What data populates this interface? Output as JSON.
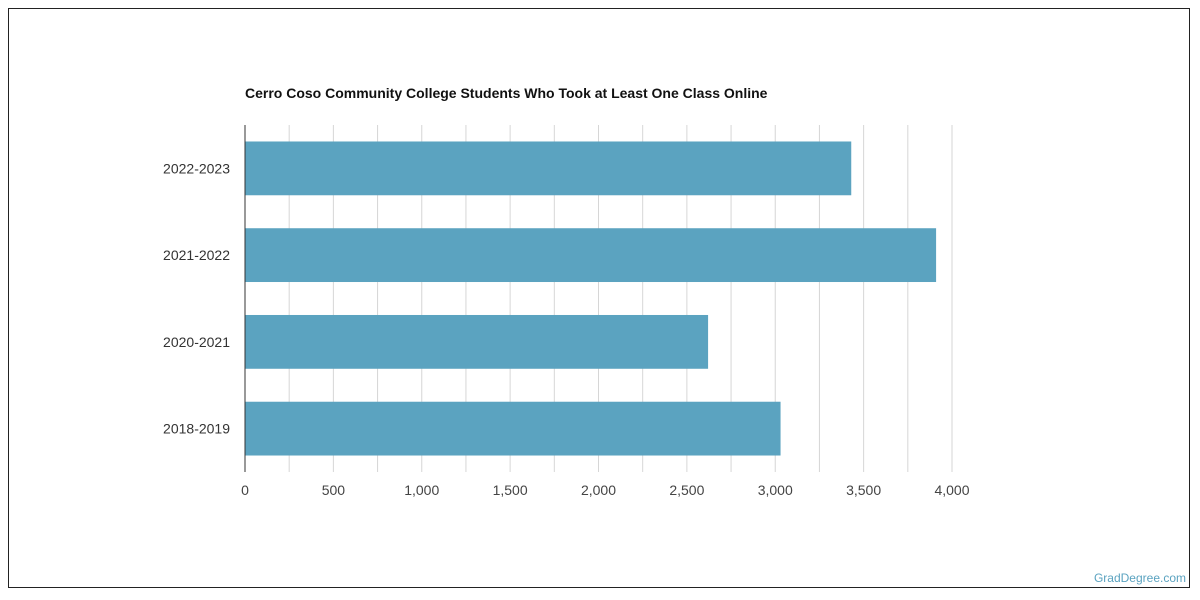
{
  "chart_data": {
    "type": "bar",
    "orientation": "horizontal",
    "title": "Cerro Coso Community College Students Who Took at Least One Class Online",
    "categories": [
      "2022-2023",
      "2021-2022",
      "2020-2021",
      "2018-2019"
    ],
    "values": [
      3430,
      3910,
      2620,
      3030
    ],
    "xlim": [
      0,
      4000
    ],
    "xticks": [
      0,
      500,
      1000,
      1500,
      2000,
      2500,
      3000,
      3500,
      4000
    ],
    "xtick_labels": [
      "0",
      "500",
      "1,000",
      "1,500",
      "2,000",
      "2,500",
      "3,000",
      "3,500",
      "4,000"
    ],
    "xlabel": "",
    "ylabel": "",
    "grid": true,
    "bar_color": "#5ba3c0",
    "grid_color": "#d6d6d6",
    "axis_color": "#333333"
  },
  "watermark": "GradDegree.com"
}
